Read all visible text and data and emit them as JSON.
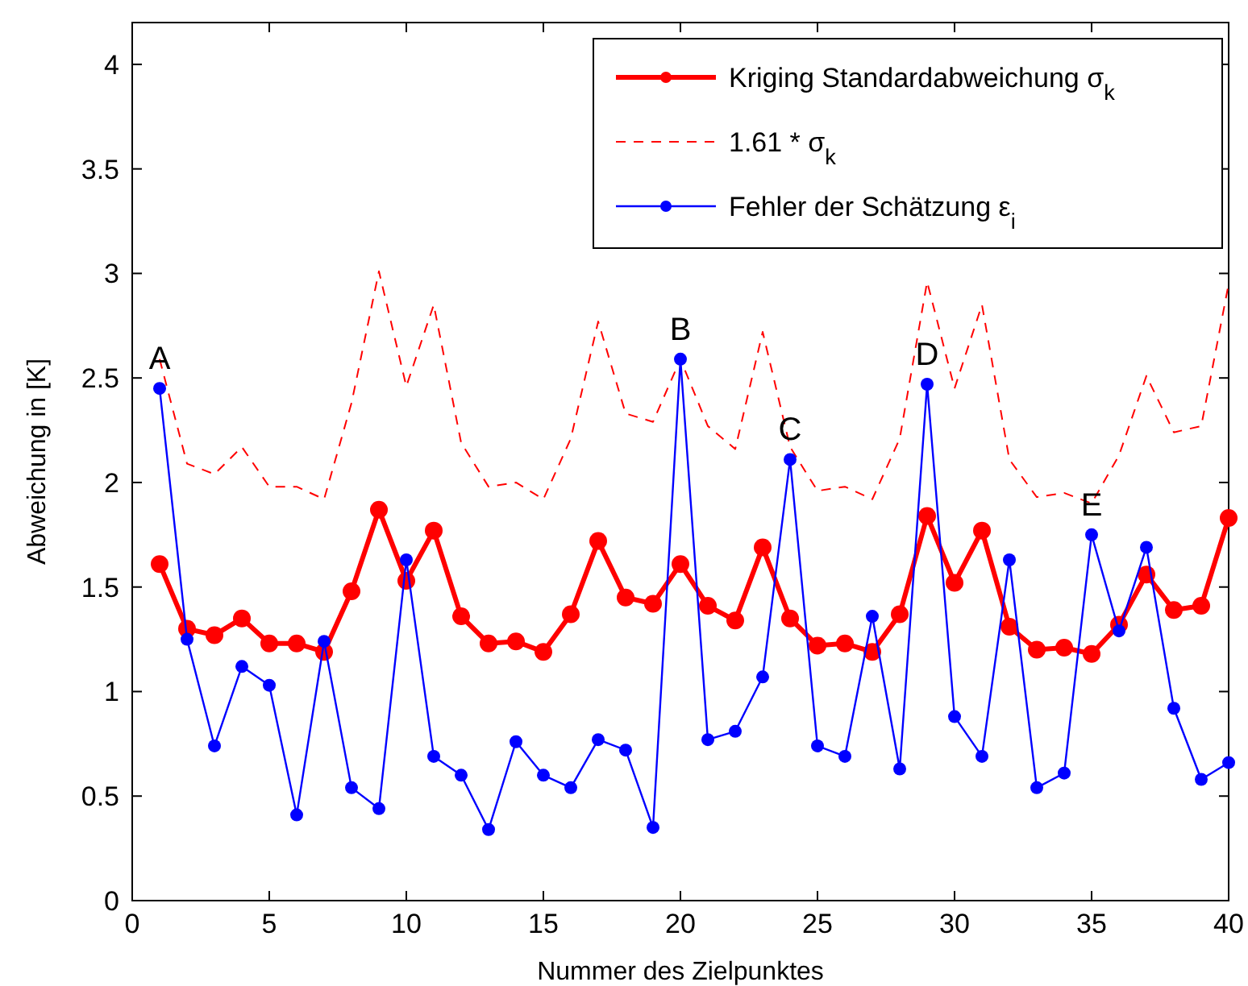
{
  "chart_data": {
    "type": "line",
    "xlabel": "Nummer des Zielpunktes",
    "ylabel": "Abweichung in [K]",
    "x": [
      1,
      2,
      3,
      4,
      5,
      6,
      7,
      8,
      9,
      10,
      11,
      12,
      13,
      14,
      15,
      16,
      17,
      18,
      19,
      20,
      21,
      22,
      23,
      24,
      25,
      26,
      27,
      28,
      29,
      30,
      31,
      32,
      33,
      34,
      35,
      36,
      37,
      38,
      39,
      40
    ],
    "series": [
      {
        "name": "Kriging Standardabweichung σ$_{k}$",
        "color": "#ff0000",
        "marker": "circle",
        "line_style": "solid",
        "values": [
          1.61,
          1.3,
          1.27,
          1.35,
          1.23,
          1.23,
          1.19,
          1.48,
          1.87,
          1.53,
          1.77,
          1.36,
          1.23,
          1.24,
          1.19,
          1.37,
          1.72,
          1.45,
          1.42,
          1.61,
          1.41,
          1.34,
          1.69,
          1.35,
          1.22,
          1.23,
          1.19,
          1.37,
          1.84,
          1.52,
          1.77,
          1.31,
          1.2,
          1.21,
          1.18,
          1.32,
          1.56,
          1.39,
          1.41,
          1.83
        ]
      },
      {
        "name": "1.61 * σ$_{k}$",
        "color": "#ff0000",
        "marker": "none",
        "line_style": "dashed",
        "values": [
          2.59,
          2.09,
          2.04,
          2.17,
          1.98,
          1.98,
          1.92,
          2.38,
          3.01,
          2.46,
          2.85,
          2.19,
          1.98,
          2.0,
          1.92,
          2.21,
          2.77,
          2.33,
          2.29,
          2.59,
          2.27,
          2.16,
          2.72,
          2.17,
          1.96,
          1.98,
          1.92,
          2.21,
          2.96,
          2.45,
          2.85,
          2.11,
          1.93,
          1.95,
          1.9,
          2.13,
          2.51,
          2.24,
          2.27,
          2.95
        ]
      },
      {
        "name": "Fehler der Schätzung ε$_{i}$",
        "color": "#0000ff",
        "marker": "circle",
        "line_style": "solid",
        "values": [
          2.45,
          1.25,
          0.74,
          1.12,
          1.03,
          0.41,
          1.24,
          0.54,
          0.44,
          1.63,
          0.69,
          0.6,
          0.34,
          0.76,
          0.6,
          0.54,
          0.77,
          0.72,
          0.35,
          2.59,
          0.77,
          0.81,
          1.07,
          2.11,
          0.74,
          0.69,
          1.36,
          0.63,
          2.47,
          0.88,
          0.69,
          1.63,
          0.54,
          0.61,
          1.75,
          1.29,
          1.69,
          0.92,
          0.58,
          0.66
        ]
      }
    ],
    "annotations": [
      {
        "text": "A",
        "x": 1,
        "y": 2.45
      },
      {
        "text": "B",
        "x": 20,
        "y": 2.59
      },
      {
        "text": "C",
        "x": 24,
        "y": 2.11
      },
      {
        "text": "D",
        "x": 29,
        "y": 2.47
      },
      {
        "text": "E",
        "x": 35,
        "y": 1.75
      }
    ],
    "xlim": [
      0,
      40
    ],
    "xticks": [
      0,
      5,
      10,
      15,
      20,
      25,
      30,
      35,
      40
    ],
    "ylim": [
      0,
      4.2
    ],
    "yticks": [
      0,
      0.5,
      1,
      1.5,
      2,
      2.5,
      3,
      3.5,
      4
    ],
    "grid": false,
    "legend": "top right"
  }
}
